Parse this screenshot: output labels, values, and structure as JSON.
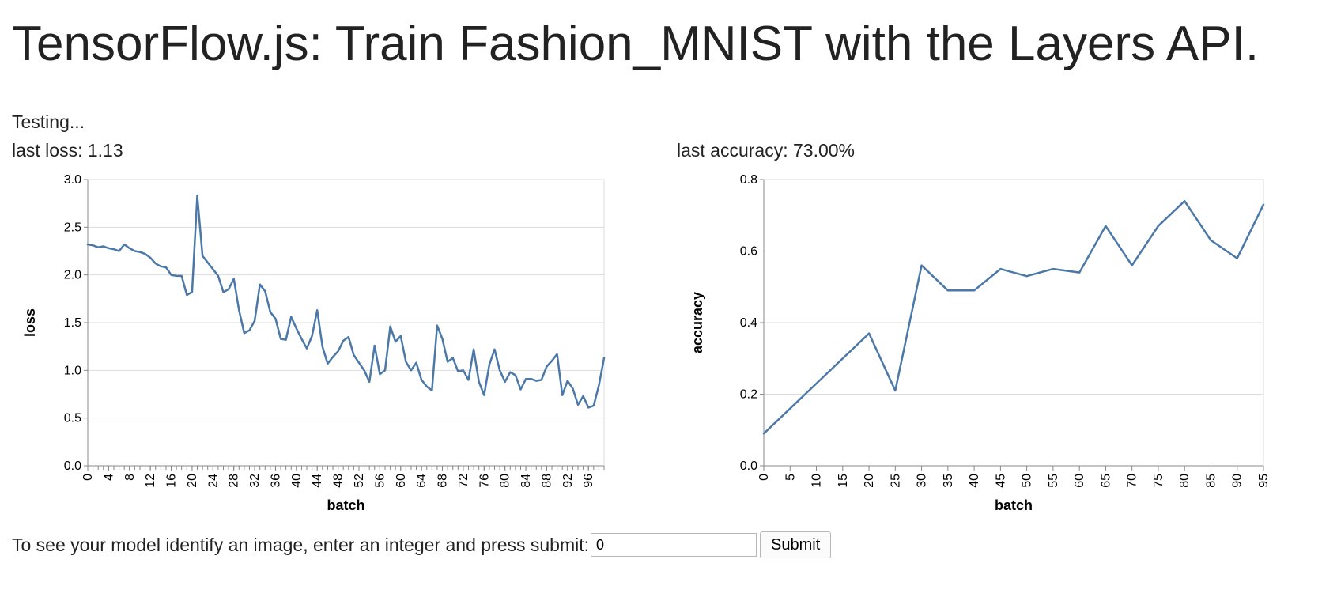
{
  "page": {
    "title": "TensorFlow.js: Train Fashion_MNIST with the Layers API.",
    "status": "Testing...",
    "last_loss_label": "last loss: 1.13",
    "last_accuracy_label": "last accuracy: 73.00%"
  },
  "predict": {
    "prompt": "To see your model identify an image, enter an integer and press submit:",
    "input_value": "0",
    "submit_label": "Submit"
  },
  "colors": {
    "line": "#4c78a8",
    "grid": "#dddddd",
    "axis": "#888888"
  },
  "chart_data": [
    {
      "type": "line",
      "title": "",
      "xlabel": "batch",
      "ylabel": "loss",
      "xlim": [
        0,
        99
      ],
      "ylim": [
        0,
        3
      ],
      "x_ticks": [
        0,
        4,
        8,
        12,
        16,
        20,
        24,
        28,
        32,
        36,
        40,
        44,
        48,
        52,
        56,
        60,
        64,
        68,
        72,
        76,
        80,
        84,
        88,
        92,
        96
      ],
      "y_ticks": [
        "0.0",
        "0.5",
        "1.0",
        "1.5",
        "2.0",
        "2.5",
        "3.0"
      ],
      "grid": true,
      "series": [
        {
          "x": [
            0,
            1,
            2,
            3,
            4,
            5,
            6,
            7,
            8,
            9,
            10,
            11,
            12,
            13,
            14,
            15,
            16,
            17,
            18,
            19,
            20,
            21,
            22,
            23,
            24,
            25,
            26,
            27,
            28,
            29,
            30,
            31,
            32,
            33,
            34,
            35,
            36,
            37,
            38,
            39,
            40,
            41,
            42,
            43,
            44,
            45,
            46,
            47,
            48,
            49,
            50,
            51,
            52,
            53,
            54,
            55,
            56,
            57,
            58,
            59,
            60,
            61,
            62,
            63,
            64,
            65,
            66,
            67,
            68,
            69,
            70,
            71,
            72,
            73,
            74,
            75,
            76,
            77,
            78,
            79,
            80,
            81,
            82,
            83,
            84,
            85,
            86,
            87,
            88,
            89,
            90,
            91,
            92,
            93,
            94,
            95,
            96,
            97,
            98,
            99
          ],
          "values": [
            2.32,
            2.31,
            2.29,
            2.3,
            2.28,
            2.27,
            2.25,
            2.32,
            2.28,
            2.25,
            2.24,
            2.22,
            2.18,
            2.12,
            2.09,
            2.08,
            2.0,
            1.99,
            1.99,
            1.79,
            1.82,
            2.83,
            2.2,
            2.13,
            2.06,
            1.99,
            1.82,
            1.85,
            1.96,
            1.63,
            1.39,
            1.42,
            1.52,
            1.9,
            1.83,
            1.61,
            1.54,
            1.33,
            1.32,
            1.56,
            1.44,
            1.33,
            1.23,
            1.36,
            1.63,
            1.25,
            1.07,
            1.14,
            1.2,
            1.31,
            1.35,
            1.16,
            1.08,
            1.0,
            0.88,
            1.26,
            0.96,
            1.0,
            1.46,
            1.3,
            1.36,
            1.09,
            1.0,
            1.08,
            0.9,
            0.83,
            0.79,
            1.47,
            1.33,
            1.09,
            1.13,
            0.99,
            1.0,
            0.9,
            1.22,
            0.88,
            0.74,
            1.06,
            1.22,
            1.0,
            0.88,
            0.98,
            0.95,
            0.8,
            0.91,
            0.91,
            0.89,
            0.9,
            1.04,
            1.1,
            1.17,
            0.74,
            0.89,
            0.81,
            0.64,
            0.73,
            0.61,
            0.63,
            0.84,
            1.13
          ]
        }
      ]
    },
    {
      "type": "line",
      "title": "",
      "xlabel": "batch",
      "ylabel": "accuracy",
      "xlim": [
        0,
        95
      ],
      "ylim": [
        0,
        0.8
      ],
      "x_ticks": [
        0,
        5,
        10,
        15,
        20,
        25,
        30,
        35,
        40,
        45,
        50,
        55,
        60,
        65,
        70,
        75,
        80,
        85,
        90,
        95
      ],
      "y_ticks": [
        "0.0",
        "0.2",
        "0.4",
        "0.6",
        "0.8"
      ],
      "grid": true,
      "series": [
        {
          "x": [
            0,
            20,
            25,
            30,
            35,
            40,
            45,
            50,
            55,
            60,
            65,
            70,
            75,
            80,
            85,
            90,
            95
          ],
          "values": [
            0.09,
            0.37,
            0.21,
            0.56,
            0.49,
            0.49,
            0.55,
            0.53,
            0.55,
            0.54,
            0.67,
            0.56,
            0.67,
            0.74,
            0.63,
            0.58,
            0.73
          ]
        }
      ]
    }
  ]
}
